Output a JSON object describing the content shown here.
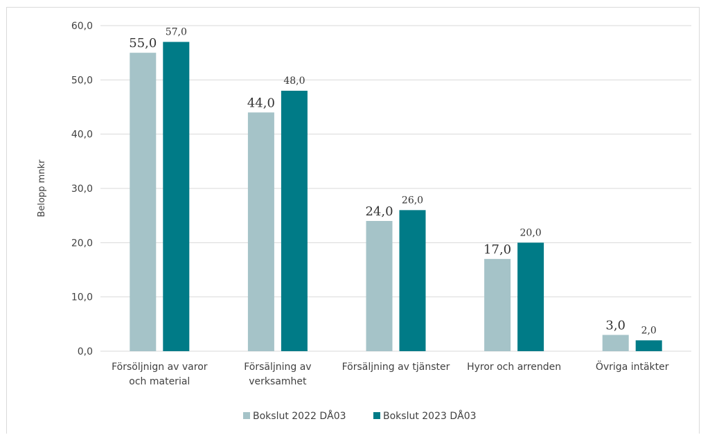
{
  "chart_data": {
    "type": "bar",
    "categories": [
      [
        "Försöljnign av varor",
        "och material"
      ],
      [
        "Försäljning av",
        "verksamhet"
      ],
      [
        "Försäljning av tjänster"
      ],
      [
        "Hyror och arrenden"
      ],
      [
        "Övriga intäkter"
      ]
    ],
    "series": [
      {
        "name": "Bokslut 2022 DÅ03",
        "values": [
          55.0,
          44.0,
          24.0,
          17.0,
          3.0
        ],
        "labels": [
          "55,0",
          "44,0",
          "24,0",
          "17,0",
          "3,0"
        ],
        "color": "#a5c3c8"
      },
      {
        "name": "Bokslut 2023 DÅ03",
        "values": [
          57.0,
          48.0,
          26.0,
          20.0,
          2.0
        ],
        "labels": [
          "57,0",
          "48,0",
          "26,0",
          "20,0",
          "2,0"
        ],
        "color": "#007b87"
      }
    ],
    "ylabel": "Belopp mnkr",
    "ylim": [
      0,
      60
    ],
    "yticks": [
      0,
      10,
      20,
      30,
      40,
      50,
      60
    ],
    "ytick_labels": [
      "0,0",
      "10,0",
      "20,0",
      "30,0",
      "40,0",
      "50,0",
      "60,0"
    ],
    "grid": true,
    "legend": "bottom"
  }
}
